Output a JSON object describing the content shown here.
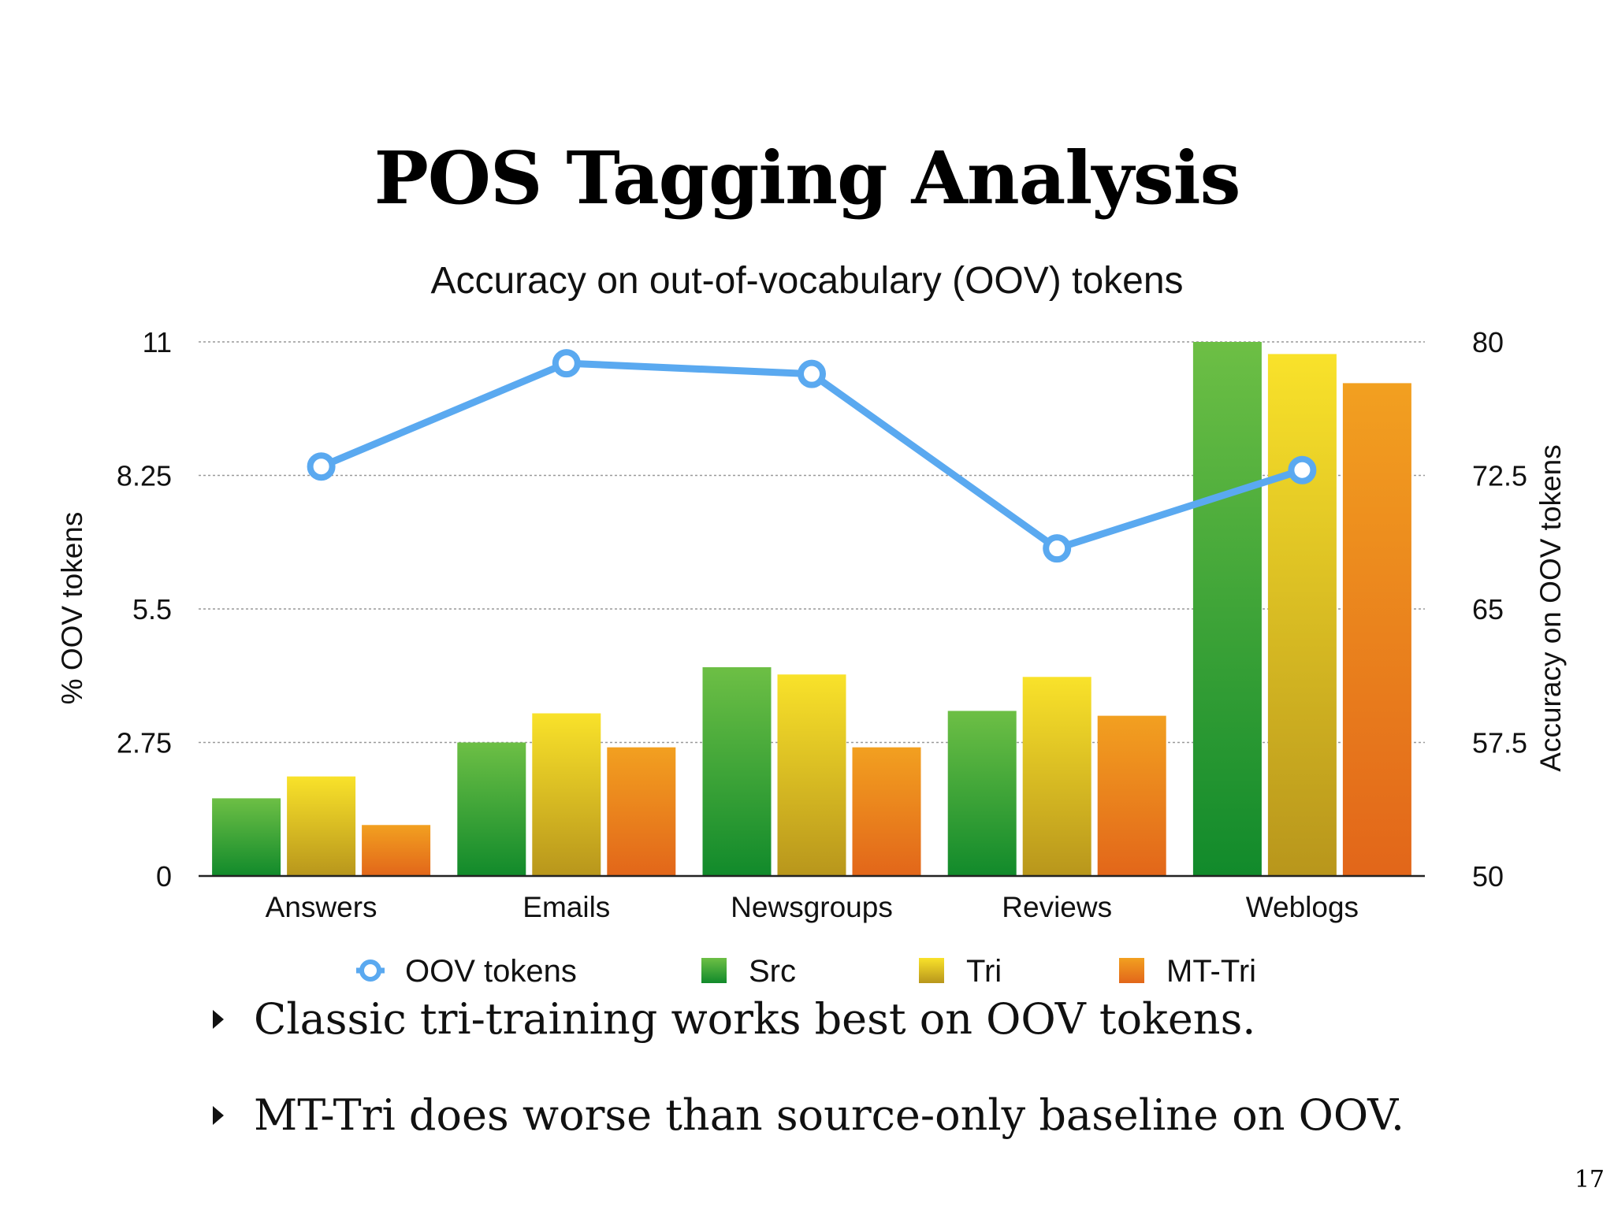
{
  "slide": {
    "title": "POS Tagging Analysis",
    "bullets": [
      "Classic tri-training works best on OOV tokens.",
      "MT-Tri does worse than source-only baseline on OOV."
    ],
    "page_number": "17"
  },
  "colors": {
    "src_top": "#6dbf45",
    "src_bottom": "#118a2b",
    "tri_top": "#f9e22a",
    "tri_bottom": "#b8961c",
    "mttri_top": "#f2a020",
    "mttri_bottom": "#e2661a",
    "line": "#5aa9f0"
  },
  "chart_data": {
    "type": "bar",
    "title": "Accuracy on out-of-vocabulary (OOV) tokens",
    "categories": [
      "Answers",
      "Emails",
      "Newsgroups",
      "Reviews",
      "Weblogs"
    ],
    "ylabel": "% OOV tokens",
    "ylabel_right": "Accuracy on OOV tokens",
    "ylim": [
      0,
      11
    ],
    "yticks": [
      "0",
      "2.75",
      "5.5",
      "8.25",
      "11"
    ],
    "ylim_right": [
      50,
      80
    ],
    "yticks_right": [
      "50",
      "57.5",
      "65",
      "72.5",
      "80"
    ],
    "grid": true,
    "legend_position": "bottom",
    "series": [
      {
        "name": "Src",
        "axis": "left",
        "kind": "bar",
        "values": [
          1.6,
          2.75,
          4.3,
          3.4,
          11.0
        ]
      },
      {
        "name": "Tri",
        "axis": "left",
        "kind": "bar",
        "values": [
          2.05,
          3.35,
          4.15,
          4.1,
          10.75
        ]
      },
      {
        "name": "MT-Tri",
        "axis": "left",
        "kind": "bar",
        "values": [
          1.05,
          2.65,
          2.65,
          3.3,
          10.15
        ]
      },
      {
        "name": "OOV tokens",
        "axis": "right",
        "kind": "line",
        "values": [
          73.0,
          78.8,
          78.2,
          68.4,
          72.8
        ]
      }
    ]
  }
}
